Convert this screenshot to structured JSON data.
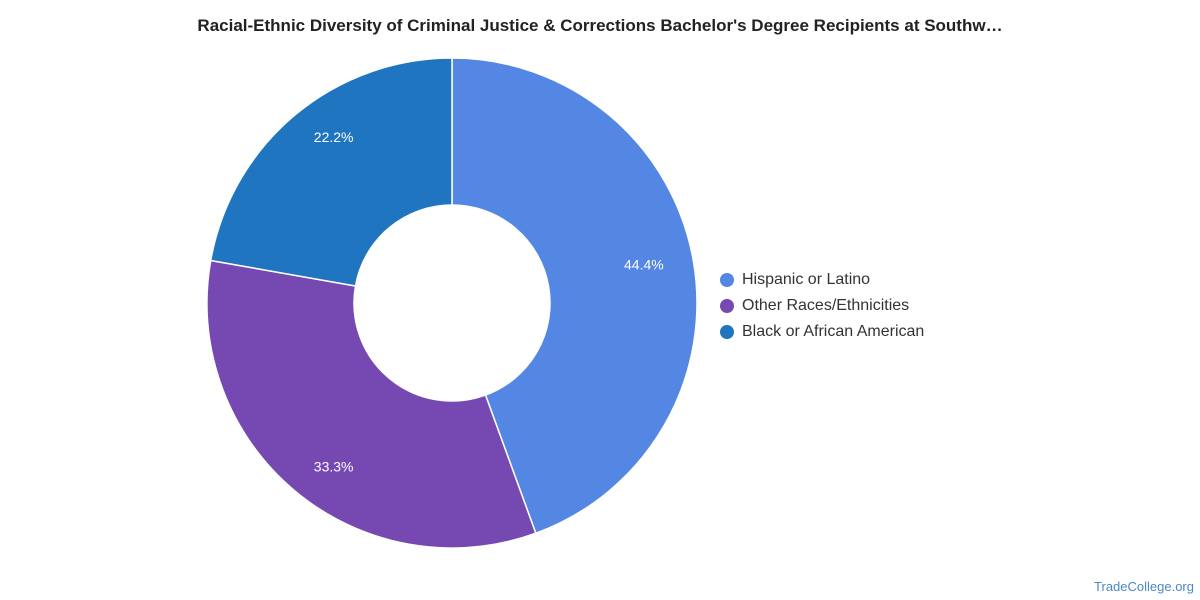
{
  "chart_data": {
    "type": "pie",
    "title": "Racial-Ethnic Diversity of Criminal Justice & Corrections Bachelor's Degree Recipients at Southw…",
    "slices": [
      {
        "label": "Hispanic or Latino",
        "value": 44.4,
        "display": "44.4%",
        "color": "#5387e3"
      },
      {
        "label": "Other Races/Ethnicities",
        "value": 33.3,
        "display": "33.3%",
        "color": "#7649b2"
      },
      {
        "label": "Black or African American",
        "value": 22.2,
        "display": "22.2%",
        "color": "#1f75bf"
      }
    ],
    "donut": true,
    "legend_position": "right"
  },
  "footer": {
    "credit": "TradeCollege.org"
  }
}
